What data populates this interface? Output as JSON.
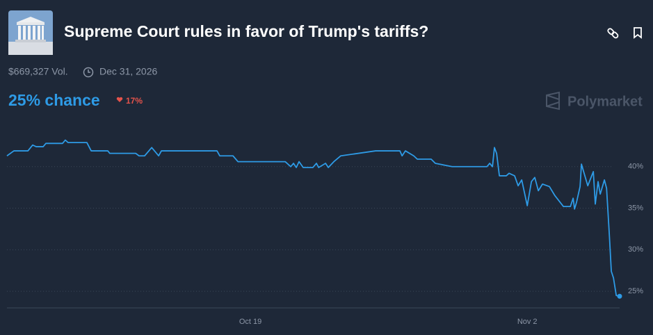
{
  "header": {
    "title": "Supreme Court rules in favor of Trump's tariffs?",
    "volume": "$669,327 Vol.",
    "end_date": "Dec 31, 2026",
    "chance": "25% chance",
    "change": "17%",
    "brand": "Polymarket"
  },
  "chart_data": {
    "type": "line",
    "x": [
      0,
      0.35,
      1.06,
      1.3,
      1.48,
      1.83,
      1.97,
      2.81,
      2.95,
      3.09,
      4.04,
      4.26,
      5.1,
      5.2,
      6.51,
      6.68,
      6.96,
      7.32,
      7.46,
      7.67,
      7.81,
      10.62,
      10.76,
      11.43,
      11.68,
      14.07,
      14.35,
      14.49,
      14.63,
      14.77,
      14.98,
      15.47,
      15.65,
      15.76,
      16.11,
      16.25,
      16.53,
      16.88,
      18.64,
      19.87,
      19.98,
      20.15,
      20.57,
      20.75,
      21.45,
      21.66,
      22.51,
      24.27,
      24.41,
      24.55,
      24.65,
      24.76,
      24.9,
      25.25,
      25.39,
      25.67,
      25.85,
      26.03,
      26.31,
      26.52,
      26.69,
      26.87,
      27.08,
      27.43,
      27.71,
      28.14,
      28.49,
      28.63,
      28.7,
      28.8,
      28.98,
      29.05,
      29.37,
      29.65,
      29.75,
      29.89,
      30.0,
      30.21,
      30.32,
      30.46,
      30.56,
      30.67,
      30.81,
      30.98
    ],
    "series": [
      {
        "color": "#2e9be6",
        "values": [
          41.3,
          41.9,
          41.9,
          42.6,
          42.4,
          42.4,
          42.8,
          42.8,
          43.2,
          42.9,
          42.9,
          41.9,
          41.9,
          41.6,
          41.6,
          41.3,
          41.3,
          42.3,
          41.9,
          41.3,
          41.9,
          41.9,
          41.3,
          41.3,
          40.6,
          40.6,
          40.0,
          40.4,
          39.9,
          40.6,
          39.9,
          39.9,
          40.4,
          39.9,
          40.4,
          39.9,
          40.6,
          41.3,
          41.9,
          41.9,
          41.3,
          41.9,
          41.3,
          40.9,
          40.9,
          40.4,
          40.0,
          40.0,
          40.4,
          40.0,
          42.3,
          41.6,
          38.9,
          38.9,
          39.2,
          38.9,
          37.7,
          38.4,
          35.3,
          38.2,
          38.7,
          37.1,
          37.9,
          37.6,
          36.5,
          35.2,
          35.2,
          36.2,
          34.9,
          35.7,
          37.6,
          40.3,
          37.7,
          39.4,
          35.5,
          38.2,
          36.7,
          38.4,
          37.4,
          31.8,
          27.4,
          26.6,
          24.5,
          24.4
        ]
      }
    ],
    "xlim": [
      0,
      30.98
    ],
    "xticks": [
      {
        "value": 12.31,
        "label": "Oct 19"
      },
      {
        "value": 26.31,
        "label": "Nov 2"
      }
    ],
    "ylim": [
      23,
      45
    ],
    "yticks": [
      {
        "value": 25,
        "label": "25%"
      },
      {
        "value": 30,
        "label": "30%"
      },
      {
        "value": 35,
        "label": "35%"
      },
      {
        "value": 40,
        "label": "40%"
      }
    ],
    "grid": true
  }
}
